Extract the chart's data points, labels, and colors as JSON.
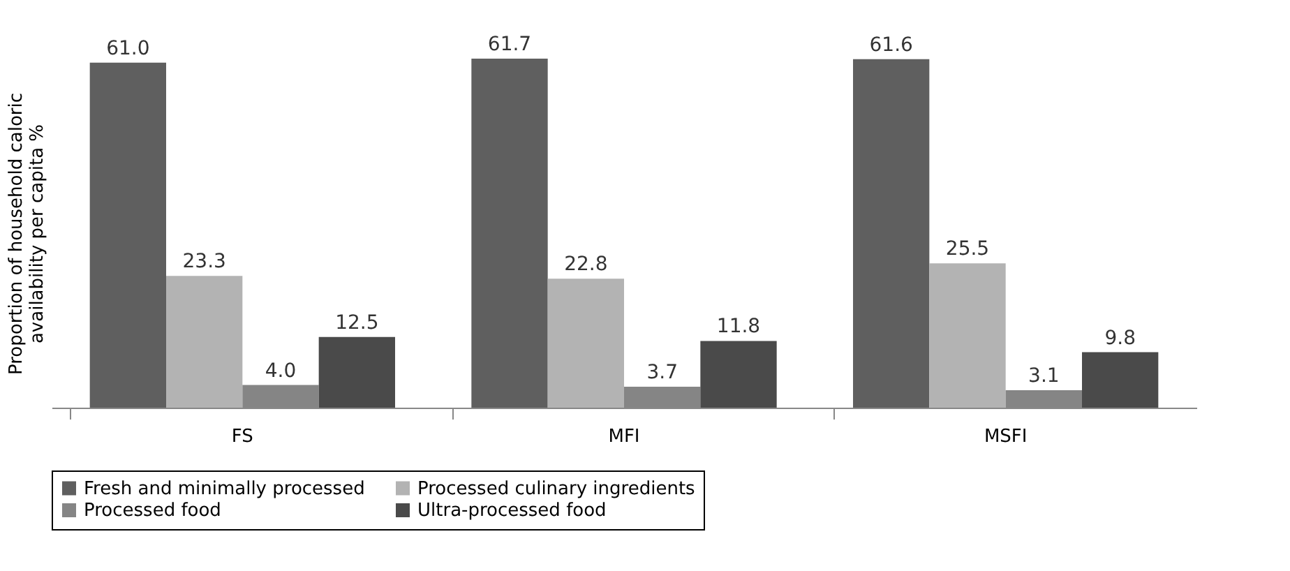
{
  "chart_data": {
    "type": "bar",
    "ylabel": "Proportion of household caloric\navailability per capita %",
    "categories": [
      "FS",
      "MFI",
      "MSFI"
    ],
    "series": [
      {
        "name": "Fresh and minimally processed",
        "color": "#5f5f5f",
        "values": [
          61.0,
          61.7,
          61.6
        ],
        "value_labels": [
          "61.0",
          "61.7",
          "61.6"
        ]
      },
      {
        "name": "Processed culinary ingredients",
        "color": "#b3b3b3",
        "values": [
          23.3,
          22.8,
          25.5
        ],
        "value_labels": [
          "23.3",
          "22.8",
          "25.5"
        ]
      },
      {
        "name": "Processed food",
        "color": "#858585",
        "values": [
          4.0,
          3.7,
          3.1
        ],
        "value_labels": [
          "4.0",
          "3.7",
          "3.1"
        ]
      },
      {
        "name": "Ultra-processed food",
        "color": "#4a4a4a",
        "values": [
          12.5,
          11.8,
          9.8
        ],
        "value_labels": [
          "12.5",
          "11.8",
          "9.8"
        ]
      }
    ],
    "legend": "bottom",
    "grid": false,
    "tick_labels": "x"
  }
}
